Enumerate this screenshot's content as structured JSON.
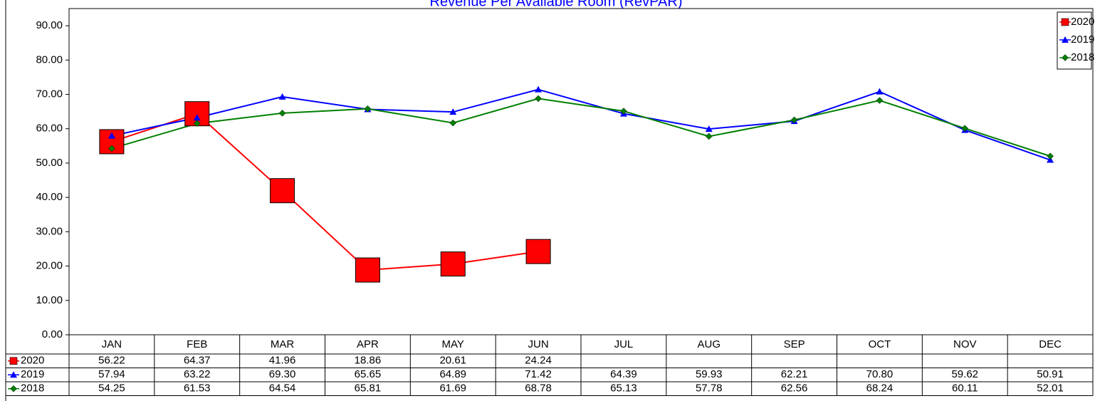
{
  "chart_data": {
    "type": "line",
    "title": "Revenue Per Available Room (RevPAR)",
    "categories": [
      "JAN",
      "FEB",
      "MAR",
      "APR",
      "MAY",
      "JUN",
      "JUL",
      "AUG",
      "SEP",
      "OCT",
      "NOV",
      "DEC"
    ],
    "series": [
      {
        "name": "2020",
        "color": "#ff0000",
        "marker": "square",
        "values": [
          56.22,
          64.37,
          41.96,
          18.86,
          20.61,
          24.24,
          null,
          null,
          null,
          null,
          null,
          null
        ],
        "value_labels": [
          "56.22",
          "64.37",
          "41.96",
          "18.86",
          "20.61",
          "24.24",
          null,
          null,
          null,
          null,
          null,
          null
        ]
      },
      {
        "name": "2019",
        "color": "#0000ff",
        "marker": "triangle",
        "values": [
          57.94,
          63.22,
          69.3,
          65.65,
          64.89,
          71.42,
          64.39,
          59.93,
          62.21,
          70.8,
          59.62,
          50.91
        ],
        "value_labels": [
          "57.94",
          "63.22",
          "69.30",
          "65.65",
          "64.89",
          "71.42",
          "64.39",
          "59.93",
          "62.21",
          "70.80",
          "59.62",
          "50.91"
        ]
      },
      {
        "name": "2018",
        "color": "#008000",
        "marker": "diamond",
        "values": [
          54.25,
          61.53,
          64.54,
          65.81,
          61.69,
          68.78,
          65.13,
          57.78,
          62.56,
          68.24,
          60.11,
          52.01
        ],
        "value_labels": [
          "54.25",
          "61.53",
          "64.54",
          "65.81",
          "61.69",
          "68.78",
          "65.13",
          "57.78",
          "62.56",
          "68.24",
          "60.11",
          "52.01"
        ]
      }
    ],
    "ylim": [
      0,
      95
    ],
    "yticks": [
      {
        "value": 0,
        "label": "0.00"
      },
      {
        "value": 10,
        "label": "10.00"
      },
      {
        "value": 20,
        "label": "20.00"
      },
      {
        "value": 30,
        "label": "30.00"
      },
      {
        "value": 40,
        "label": "40.00"
      },
      {
        "value": 50,
        "label": "50.00"
      },
      {
        "value": 60,
        "label": "60.00"
      },
      {
        "value": 70,
        "label": "70.00"
      },
      {
        "value": 80,
        "label": "80.00"
      },
      {
        "value": 90,
        "label": "90.00"
      }
    ],
    "grid": false,
    "legend": "top-right",
    "data_table": true
  }
}
